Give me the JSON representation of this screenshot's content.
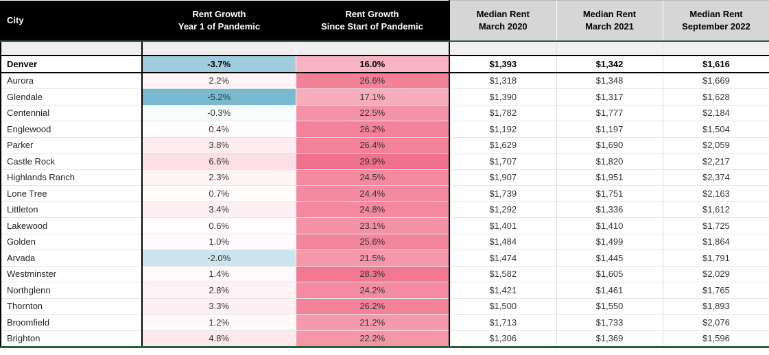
{
  "chart_data": {
    "type": "table",
    "columns": [
      {
        "line1": "City",
        "line2": ""
      },
      {
        "line1": "Rent Growth",
        "line2": "Year 1 of Pandemic"
      },
      {
        "line1": "Rent Growth",
        "line2": "Since Start of Pandemic"
      },
      {
        "line1": "Median Rent",
        "line2": "March 2020"
      },
      {
        "line1": "Median Rent",
        "line2": "March 2021"
      },
      {
        "line1": "Median Rent",
        "line2": "September 2022"
      }
    ],
    "rows": [
      {
        "city": "Denver",
        "growth_y1": "-3.7%",
        "growth_since": "16.0%",
        "rent_2020": "$1,393",
        "rent_2021": "$1,342",
        "rent_2022": "$1,616",
        "emphasis": true
      },
      {
        "city": "Aurora",
        "growth_y1": "2.2%",
        "growth_since": "26.6%",
        "rent_2020": "$1,318",
        "rent_2021": "$1,348",
        "rent_2022": "$1,669",
        "emphasis": false
      },
      {
        "city": "Glendale",
        "growth_y1": "-5.2%",
        "growth_since": "17.1%",
        "rent_2020": "$1,390",
        "rent_2021": "$1,317",
        "rent_2022": "$1,628",
        "emphasis": false
      },
      {
        "city": "Centennial",
        "growth_y1": "-0.3%",
        "growth_since": "22.5%",
        "rent_2020": "$1,782",
        "rent_2021": "$1,777",
        "rent_2022": "$2,184",
        "emphasis": false
      },
      {
        "city": "Englewood",
        "growth_y1": "0.4%",
        "growth_since": "26.2%",
        "rent_2020": "$1,192",
        "rent_2021": "$1,197",
        "rent_2022": "$1,504",
        "emphasis": false
      },
      {
        "city": "Parker",
        "growth_y1": "3.8%",
        "growth_since": "26.4%",
        "rent_2020": "$1,629",
        "rent_2021": "$1,690",
        "rent_2022": "$2,059",
        "emphasis": false
      },
      {
        "city": "Castle Rock",
        "growth_y1": "6.6%",
        "growth_since": "29.9%",
        "rent_2020": "$1,707",
        "rent_2021": "$1,820",
        "rent_2022": "$2,217",
        "emphasis": false
      },
      {
        "city": "Highlands Ranch",
        "growth_y1": "2.3%",
        "growth_since": "24.5%",
        "rent_2020": "$1,907",
        "rent_2021": "$1,951",
        "rent_2022": "$2,374",
        "emphasis": false
      },
      {
        "city": "Lone Tree",
        "growth_y1": "0.7%",
        "growth_since": "24.4%",
        "rent_2020": "$1,739",
        "rent_2021": "$1,751",
        "rent_2022": "$2,163",
        "emphasis": false
      },
      {
        "city": "Littleton",
        "growth_y1": "3.4%",
        "growth_since": "24.8%",
        "rent_2020": "$1,292",
        "rent_2021": "$1,336",
        "rent_2022": "$1,612",
        "emphasis": false
      },
      {
        "city": "Lakewood",
        "growth_y1": "0.6%",
        "growth_since": "23.1%",
        "rent_2020": "$1,401",
        "rent_2021": "$1,410",
        "rent_2022": "$1,725",
        "emphasis": false
      },
      {
        "city": "Golden",
        "growth_y1": "1.0%",
        "growth_since": "25.6%",
        "rent_2020": "$1,484",
        "rent_2021": "$1,499",
        "rent_2022": "$1,864",
        "emphasis": false
      },
      {
        "city": "Arvada",
        "growth_y1": "-2.0%",
        "growth_since": "21.5%",
        "rent_2020": "$1,474",
        "rent_2021": "$1,445",
        "rent_2022": "$1,791",
        "emphasis": false
      },
      {
        "city": "Westminster",
        "growth_y1": "1.4%",
        "growth_since": "28.3%",
        "rent_2020": "$1,582",
        "rent_2021": "$1,605",
        "rent_2022": "$2,029",
        "emphasis": false
      },
      {
        "city": "Northglenn",
        "growth_y1": "2.8%",
        "growth_since": "24.2%",
        "rent_2020": "$1,421",
        "rent_2021": "$1,461",
        "rent_2022": "$1,765",
        "emphasis": false
      },
      {
        "city": "Thornton",
        "growth_y1": "3.3%",
        "growth_since": "26.2%",
        "rent_2020": "$1,500",
        "rent_2021": "$1,550",
        "rent_2022": "$1,893",
        "emphasis": false
      },
      {
        "city": "Broomfield",
        "growth_y1": "1.2%",
        "growth_since": "21.2%",
        "rent_2020": "$1,713",
        "rent_2021": "$1,733",
        "rent_2022": "$2,076",
        "emphasis": false
      },
      {
        "city": "Brighton",
        "growth_y1": "4.8%",
        "growth_since": "22.2%",
        "rent_2020": "$1,306",
        "rent_2021": "$1,369",
        "rent_2022": "$1,596",
        "emphasis": false
      }
    ],
    "conditional_format": {
      "zero_color": "#ffffff",
      "negative_color": "#79b9d0",
      "positive_color": "#f1708a",
      "min_value": -5.2,
      "max_value": 29.9
    }
  },
  "colors": {
    "header_black_bg": "#000000",
    "header_black_text": "#ffffff",
    "header_gray_bg": "#d6d6d6",
    "accent_green_border": "#255f35",
    "spacer_row_bg": "#efefef",
    "city_column_border": "#000000"
  }
}
